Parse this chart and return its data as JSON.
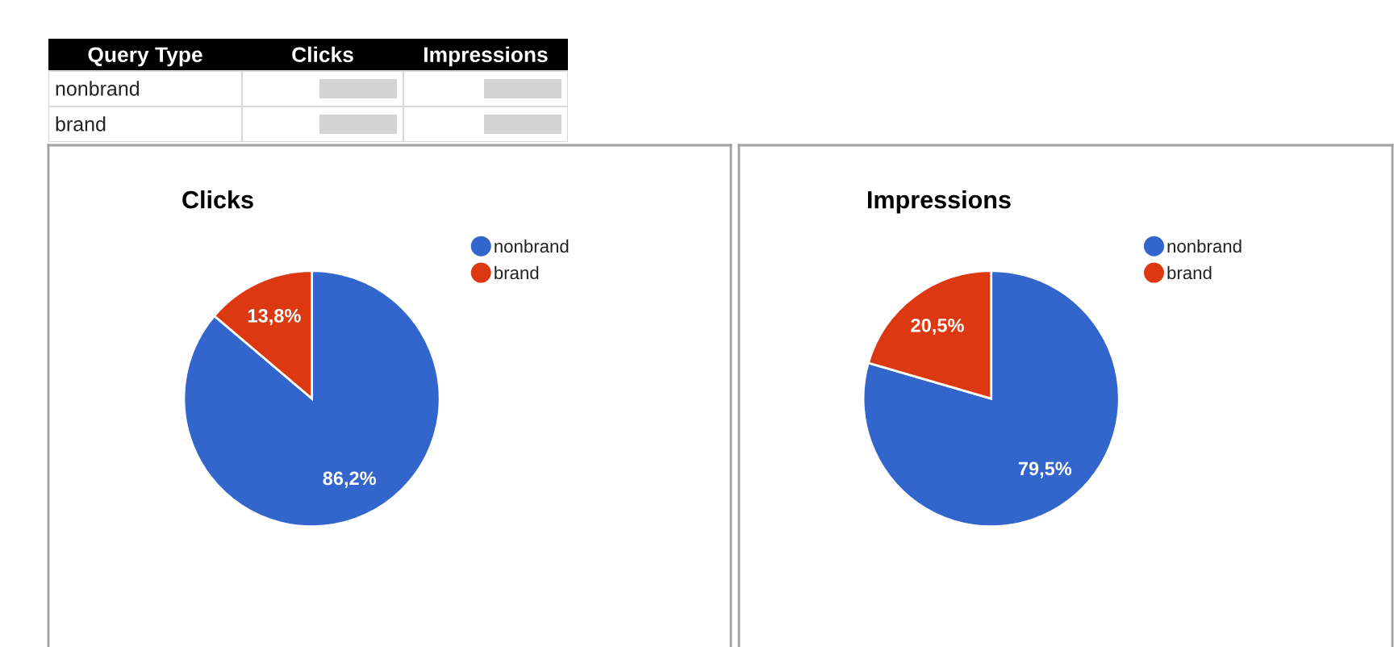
{
  "chart_data": [
    {
      "type": "other",
      "annotations": [
        "Query Type",
        "Clicks",
        "Impressions",
        "nonbrand",
        "brand"
      ]
    },
    {
      "type": "pie",
      "title": "Clicks",
      "categories": [
        "nonbrand",
        "brand"
      ],
      "values": [
        86.2,
        13.8
      ],
      "colors": [
        "#3366cc",
        "#dc3912"
      ],
      "value_labels": [
        "86,2%",
        "13,8%"
      ],
      "legend": "top right"
    },
    {
      "type": "pie",
      "title": "Impressions",
      "categories": [
        "nonbrand",
        "brand"
      ],
      "values": [
        79.5,
        20.5
      ],
      "colors": [
        "#3366cc",
        "#dc3912"
      ],
      "value_labels": [
        "79,5%",
        "20,5%"
      ],
      "legend": "top right"
    }
  ]
}
